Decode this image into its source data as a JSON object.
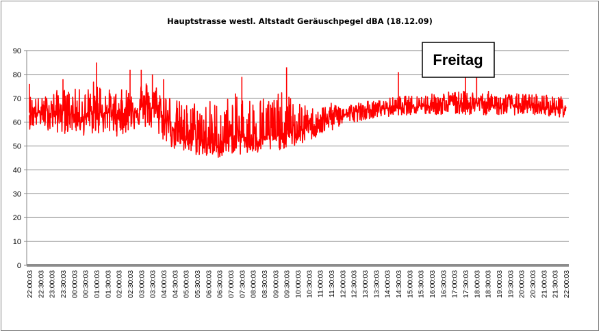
{
  "chart_data": {
    "type": "line",
    "title": "Hauptstrasse westl. Altstadt Geräuschpegel dBA (18.12.09)",
    "xlabel": "",
    "ylabel": "",
    "ylim": [
      0,
      90
    ],
    "yticks": [
      0,
      10,
      20,
      30,
      40,
      50,
      60,
      70,
      80,
      90
    ],
    "categories": [
      "22:00:03",
      "22:30:03",
      "23:00:03",
      "23:30:03",
      "00:00:03",
      "00:30:03",
      "01:00:03",
      "01:30:03",
      "02:00:03",
      "02:30:03",
      "03:00:03",
      "03:30:03",
      "04:00:03",
      "04:30:03",
      "05:00:03",
      "05:30:03",
      "06:00:03",
      "06:30:03",
      "07:00:03",
      "07:30:03",
      "08:00:03",
      "08:30:03",
      "09:00:03",
      "09:30:03",
      "10:00:03",
      "10:30:03",
      "11:00:03",
      "11:30:03",
      "12:00:03",
      "12:30:03",
      "13:00:03",
      "13:30:03",
      "14:00:03",
      "14:30:03",
      "15:00:03",
      "15:30:03",
      "16:00:03",
      "16:30:03",
      "17:00:03",
      "17:30:03",
      "18:00:03",
      "18:30:03",
      "19:00:03",
      "19:30:03",
      "20:00:03",
      "20:30:03",
      "21:00:03",
      "21:30:03",
      "22:00:03"
    ],
    "series": [
      {
        "color": "#ff0000",
        "envelope": {
          "low": [
            57,
            58,
            56,
            55,
            56,
            54,
            55,
            55,
            54,
            56,
            58,
            56,
            52,
            48,
            46,
            46,
            45,
            45,
            47,
            46,
            46,
            47,
            48,
            49,
            50,
            52,
            54,
            56,
            59,
            60,
            61,
            62,
            62,
            63,
            63,
            63,
            63,
            63,
            63,
            63,
            63,
            63,
            63,
            63,
            63,
            63,
            63,
            62,
            62
          ],
          "mid": [
            64,
            64,
            64,
            65,
            63,
            62,
            64,
            64,
            63,
            65,
            66,
            66,
            62,
            57,
            54,
            53,
            51,
            50,
            53,
            54,
            53,
            54,
            54,
            55,
            56,
            58,
            60,
            62,
            63,
            64,
            65,
            65,
            66,
            66,
            67,
            67,
            67,
            67,
            68,
            68,
            68,
            67,
            67,
            67,
            67,
            66,
            66,
            66,
            66
          ],
          "high": [
            72,
            70,
            73,
            74,
            74,
            74,
            79,
            74,
            73,
            76,
            78,
            77,
            75,
            70,
            68,
            70,
            70,
            69,
            72,
            72,
            71,
            72,
            73,
            72,
            69,
            66,
            67,
            68,
            68,
            68,
            69,
            69,
            70,
            71,
            71,
            72,
            72,
            73,
            73,
            73,
            73,
            73,
            72,
            72,
            72,
            72,
            72,
            71,
            71
          ]
        },
        "spikes": [
          {
            "time": "22:00:03",
            "value": 76
          },
          {
            "time": "23:30:03",
            "value": 78
          },
          {
            "time": "01:00:03",
            "value": 85
          },
          {
            "time": "02:30:03",
            "value": 82
          },
          {
            "time": "03:00:03",
            "value": 82
          },
          {
            "time": "03:30:03",
            "value": 80
          },
          {
            "time": "04:00:03",
            "value": 78
          },
          {
            "time": "07:30:03",
            "value": 79
          },
          {
            "time": "09:30:03",
            "value": 83
          },
          {
            "time": "14:30:03",
            "value": 81
          },
          {
            "time": "17:30:03",
            "value": 79
          },
          {
            "time": "18:00:03",
            "value": 79
          }
        ]
      }
    ],
    "annotation": "Freitag",
    "grid": true,
    "legend": "none"
  }
}
